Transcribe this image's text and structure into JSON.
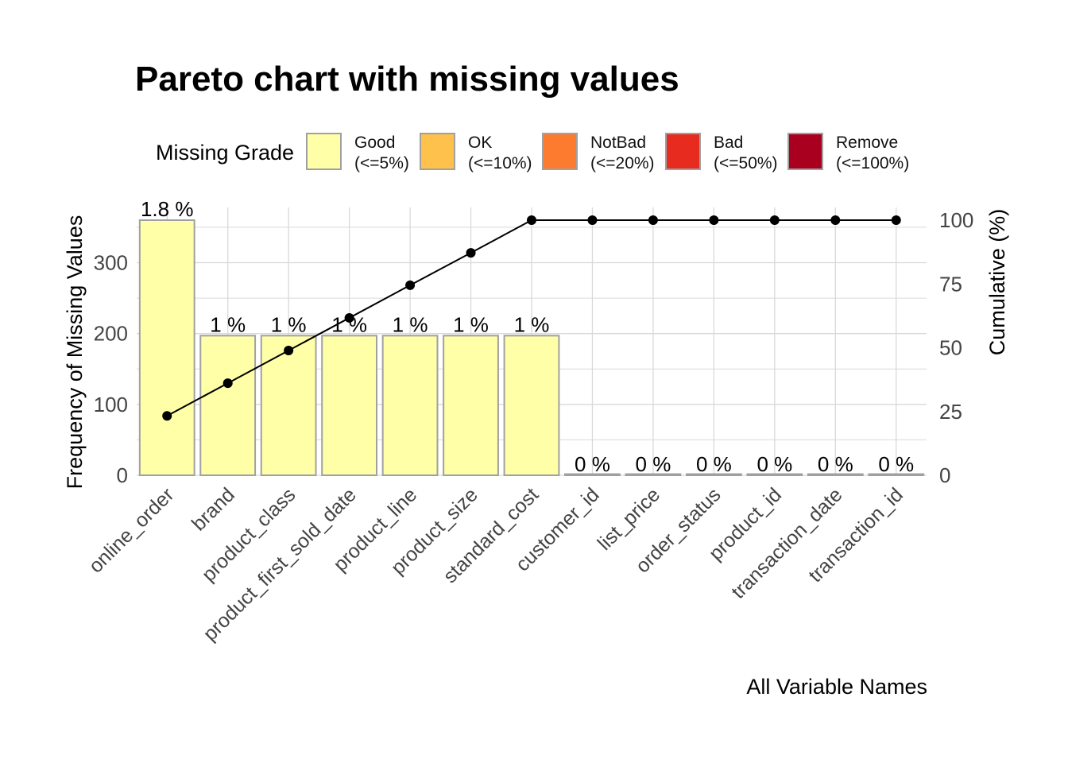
{
  "chart_data": {
    "type": "bar",
    "title": "Pareto chart with missing values",
    "xlabel": "All Variable Names",
    "ylabel": "Frequency of Missing Values",
    "y2label": "Cumulative (%)",
    "categories": [
      "online_order",
      "brand",
      "product_class",
      "product_first_sold_date",
      "product_line",
      "product_size",
      "standard_cost",
      "customer_id",
      "list_price",
      "order_status",
      "product_id",
      "transaction_date",
      "transaction_id"
    ],
    "values": [
      360,
      197,
      197,
      197,
      197,
      197,
      197,
      0,
      0,
      0,
      0,
      0,
      0
    ],
    "data_labels": [
      "1.8 %",
      "1 %",
      "1 %",
      "1 %",
      "1 %",
      "1 %",
      "1 %",
      "0 %",
      "0 %",
      "0 %",
      "0 %",
      "0 %",
      "0 %"
    ],
    "cumulative": [
      23.3,
      36.1,
      48.9,
      61.7,
      74.5,
      87.2,
      100,
      100,
      100,
      100,
      100,
      100,
      100
    ],
    "ylim": [
      0,
      360
    ],
    "y2lim": [
      0,
      100
    ],
    "yticks": [
      0,
      100,
      200,
      300
    ],
    "y2ticks": [
      0,
      25,
      50,
      75,
      100
    ],
    "grid": true,
    "legend_position": "top",
    "legend": {
      "title": "Missing Grade",
      "items": [
        {
          "name": "Good",
          "range": "(<=5%)",
          "color": "#FFFFA8"
        },
        {
          "name": "OK",
          "range": "(<=10%)",
          "color": "#FEC24C"
        },
        {
          "name": "NotBad",
          "range": "(<=20%)",
          "color": "#FC7B2F"
        },
        {
          "name": "Bad",
          "range": "(<=50%)",
          "color": "#E72B1F"
        },
        {
          "name": "Remove",
          "range": "(<=100%)",
          "color": "#A8001E"
        }
      ]
    },
    "colors": {
      "bar_fill": "#FFFFA8",
      "bar_stroke": "#A0A0A0",
      "line": "#000000",
      "grid": "#D9D9D9"
    }
  }
}
